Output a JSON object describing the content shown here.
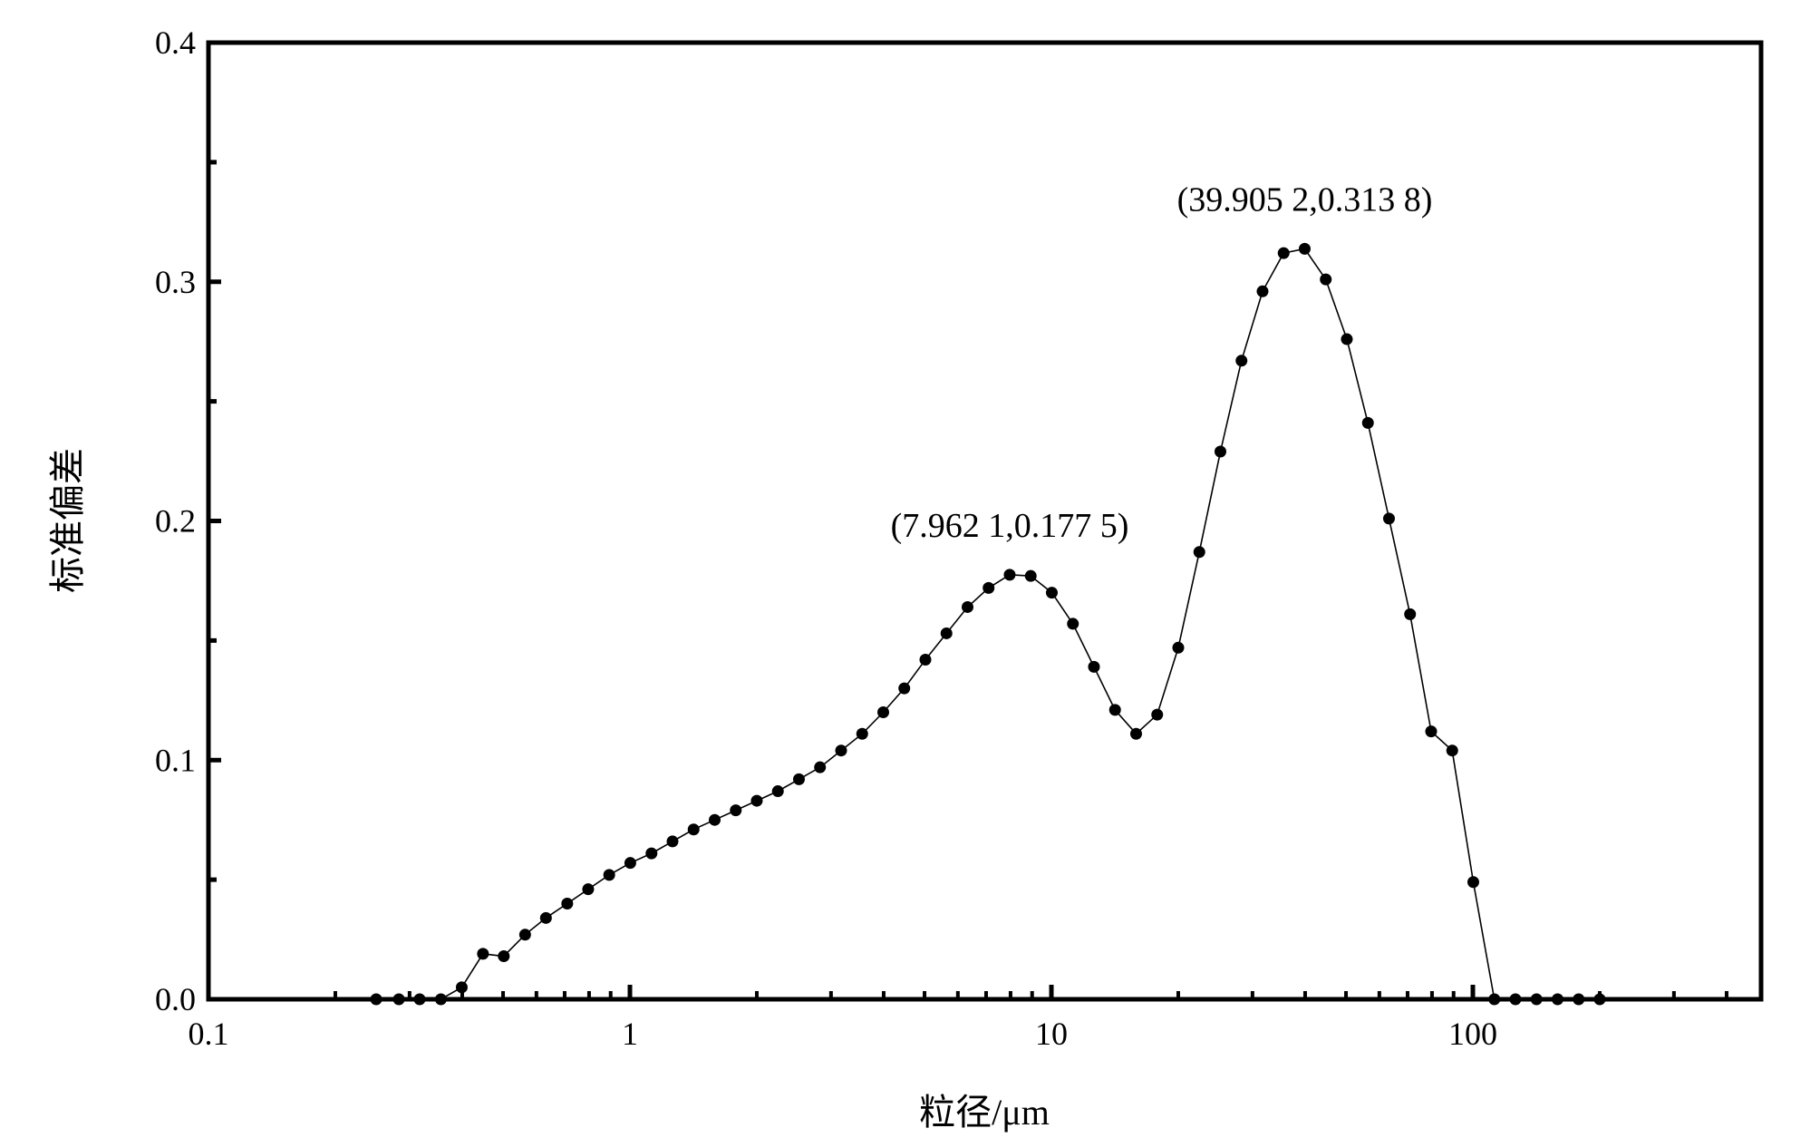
{
  "chart_data": {
    "type": "scatter",
    "xlabel": "粒径/μm",
    "ylabel": "标准偏差",
    "x_scale": "log",
    "xlim": [
      0.1,
      500
    ],
    "ylim": [
      0,
      0.4
    ],
    "x_ticks": [
      "0.1",
      "1",
      "10",
      "100"
    ],
    "y_ticks": [
      "0.0",
      "0.1",
      "0.2",
      "0.3",
      "0.4"
    ],
    "grid": false,
    "line_style": "thin line connecting markers",
    "marker": "filled circle",
    "annotations": [
      {
        "text": "(7.962 1,0.177 5)",
        "x": 7.9621,
        "y": 0.1775
      },
      {
        "text": "(39.905 2,0.313 8)",
        "x": 39.9052,
        "y": 0.3138
      }
    ],
    "series": [
      {
        "x": [
          0.25,
          0.283,
          0.317,
          0.356,
          0.399,
          0.448,
          0.502,
          0.564,
          0.632,
          0.71,
          0.796,
          0.893,
          1.002,
          1.125,
          1.262,
          1.416,
          1.589,
          1.783,
          2.0,
          2.244,
          2.518,
          2.825,
          3.17,
          3.557,
          3.991,
          4.477,
          5.024,
          5.637,
          6.325,
          7.096,
          7.962,
          8.934,
          10.024,
          11.247,
          12.619,
          14.159,
          15.887,
          17.825,
          20.0,
          22.44,
          25.179,
          28.251,
          31.698,
          35.566,
          39.905,
          44.774,
          50.238,
          56.368,
          63.246,
          70.963,
          79.621,
          89.337,
          100.237,
          112.468,
          126.191,
          141.589,
          158.866,
          178.25,
          200.0
        ],
        "y": [
          0,
          0,
          0,
          0,
          0.005,
          0.019,
          0.018,
          0.027,
          0.034,
          0.04,
          0.046,
          0.052,
          0.057,
          0.061,
          0.066,
          0.071,
          0.075,
          0.079,
          0.083,
          0.087,
          0.092,
          0.097,
          0.104,
          0.111,
          0.12,
          0.13,
          0.142,
          0.153,
          0.164,
          0.172,
          0.1775,
          0.177,
          0.17,
          0.157,
          0.139,
          0.121,
          0.111,
          0.119,
          0.147,
          0.187,
          0.229,
          0.267,
          0.296,
          0.312,
          0.3138,
          0.301,
          0.276,
          0.241,
          0.201,
          0.161,
          0.112,
          0.104,
          0.049,
          0,
          0,
          0,
          0,
          0,
          0
        ]
      }
    ]
  }
}
